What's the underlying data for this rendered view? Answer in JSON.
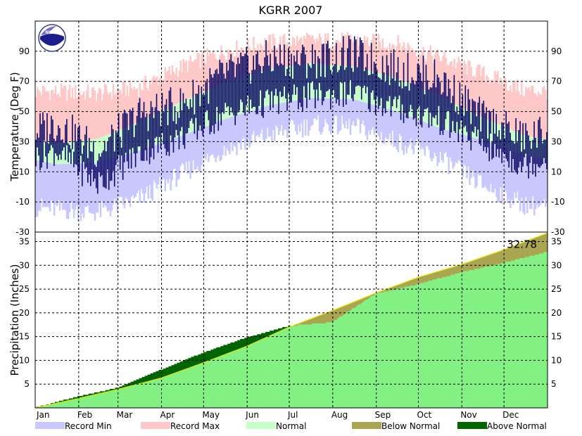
{
  "chart_data": {
    "type": "area",
    "title": "KGRR 2007",
    "months": [
      "Jan",
      "Feb",
      "Mar",
      "Apr",
      "May",
      "Jun",
      "Jul",
      "Aug",
      "Sep",
      "Oct",
      "Nov",
      "Dec"
    ],
    "colors": {
      "record_min": "#c8c8ff",
      "record_max": "#ffc8c8",
      "normal": "#c8ffc8",
      "observed_temp": "#0a0a64",
      "below_normal": "#aaa550",
      "above_normal": "#006400",
      "observed_precip": "#82f082",
      "normal_precip_line": "#e6e600"
    },
    "temperature": {
      "ylabel": "Temperature (Deg F)",
      "ylim": [
        -30,
        110
      ],
      "yticks": [
        -30,
        -10,
        10,
        30,
        50,
        70,
        90
      ],
      "record_max": [
        63,
        62,
        66,
        80,
        90,
        96,
        97,
        97,
        95,
        86,
        75,
        64
      ],
      "normal_high": [
        29,
        32,
        43,
        57,
        69,
        78,
        82,
        80,
        72,
        60,
        46,
        34
      ],
      "normal_low": [
        15,
        16,
        24,
        34,
        45,
        54,
        59,
        58,
        50,
        39,
        31,
        21
      ],
      "record_min": [
        -15,
        -17,
        -8,
        9,
        25,
        34,
        41,
        40,
        30,
        19,
        1,
        -12
      ],
      "observed_high": [
        42,
        24,
        48,
        55,
        75,
        85,
        84,
        88,
        78,
        72,
        45,
        32
      ],
      "observed_low": [
        24,
        2,
        22,
        33,
        48,
        56,
        60,
        62,
        52,
        44,
        28,
        14
      ]
    },
    "precipitation": {
      "ylabel": "Precipitation (Inches)",
      "ylim": [
        0,
        37
      ],
      "yticks": [
        5,
        10,
        15,
        20,
        25,
        30,
        35
      ],
      "annotation": "32.78",
      "normal_cumulative": [
        0,
        2.0,
        3.9,
        6.3,
        9.5,
        13.0,
        17.0,
        20.5,
        24.2,
        27.5,
        30.2,
        33.3,
        36.8
      ],
      "observed_cumulative": [
        0,
        2.4,
        4.2,
        8.0,
        11.6,
        14.8,
        17.2,
        18.0,
        24.0,
        26.0,
        28.5,
        30.5,
        32.78
      ]
    },
    "legend": [
      {
        "label": "Record Min",
        "color": "#c8c8ff"
      },
      {
        "label": "Record Max",
        "color": "#ffc8c8"
      },
      {
        "label": "Normal",
        "color": "#c8ffc8"
      },
      {
        "label": "Below Normal",
        "color": "#aaa550"
      },
      {
        "label": "Above Normal",
        "color": "#006400"
      }
    ]
  }
}
